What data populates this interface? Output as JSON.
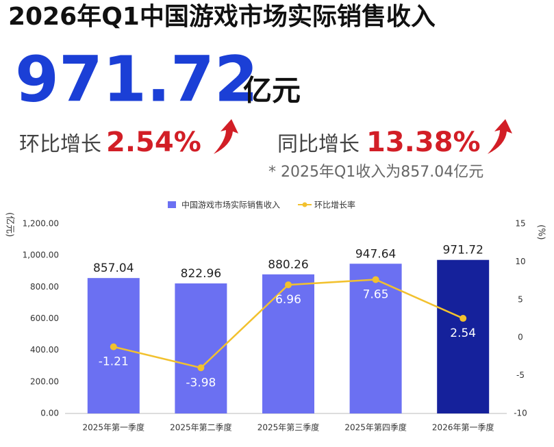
{
  "header": {
    "title": "2026年Q1中国游戏市场实际销售收入",
    "amount": "971.72",
    "unit": "亿元",
    "qoq_label": "环比增长",
    "qoq_value": "2.54%",
    "yoy_label": "同比增长",
    "yoy_value": "13.38%",
    "note": "* 2025年Q1收入为857.04亿元"
  },
  "chart_data": {
    "type": "bar",
    "categories": [
      "2025年第一季度",
      "2025年第二季度",
      "2025年第三季度",
      "2025年第四季度",
      "2026年第一季度"
    ],
    "series": [
      {
        "name": "中国游戏市场实际销售收入",
        "type": "bar",
        "color": "#6b70f2",
        "colors": [
          "#6b70f2",
          "#6b70f2",
          "#6b70f2",
          "#6b70f2",
          "#15219b"
        ],
        "values": [
          857.04,
          822.96,
          880.26,
          947.64,
          971.72
        ]
      },
      {
        "name": "环比增长率",
        "type": "line",
        "axis": "y2",
        "color": "#f2c12e",
        "values": [
          -1.21,
          -3.98,
          6.96,
          7.65,
          2.54
        ]
      }
    ],
    "y_label": "(亿元)",
    "y2_label": "(%)",
    "ylim": [
      0,
      1200
    ],
    "yticks": [
      {
        "value": 0,
        "label": "0.00"
      },
      {
        "value": 200,
        "label": "200.00"
      },
      {
        "value": 400,
        "label": "400.00"
      },
      {
        "value": 600,
        "label": "600.00"
      },
      {
        "value": 800,
        "label": "800.00"
      },
      {
        "value": 1000,
        "label": "1,000.00"
      },
      {
        "value": 1200,
        "label": "1,200.00"
      }
    ],
    "y2lim": [
      -10,
      15
    ],
    "y2ticks": [
      -10,
      -5,
      0,
      5,
      10,
      15
    ],
    "legend": "top",
    "grid": false
  }
}
